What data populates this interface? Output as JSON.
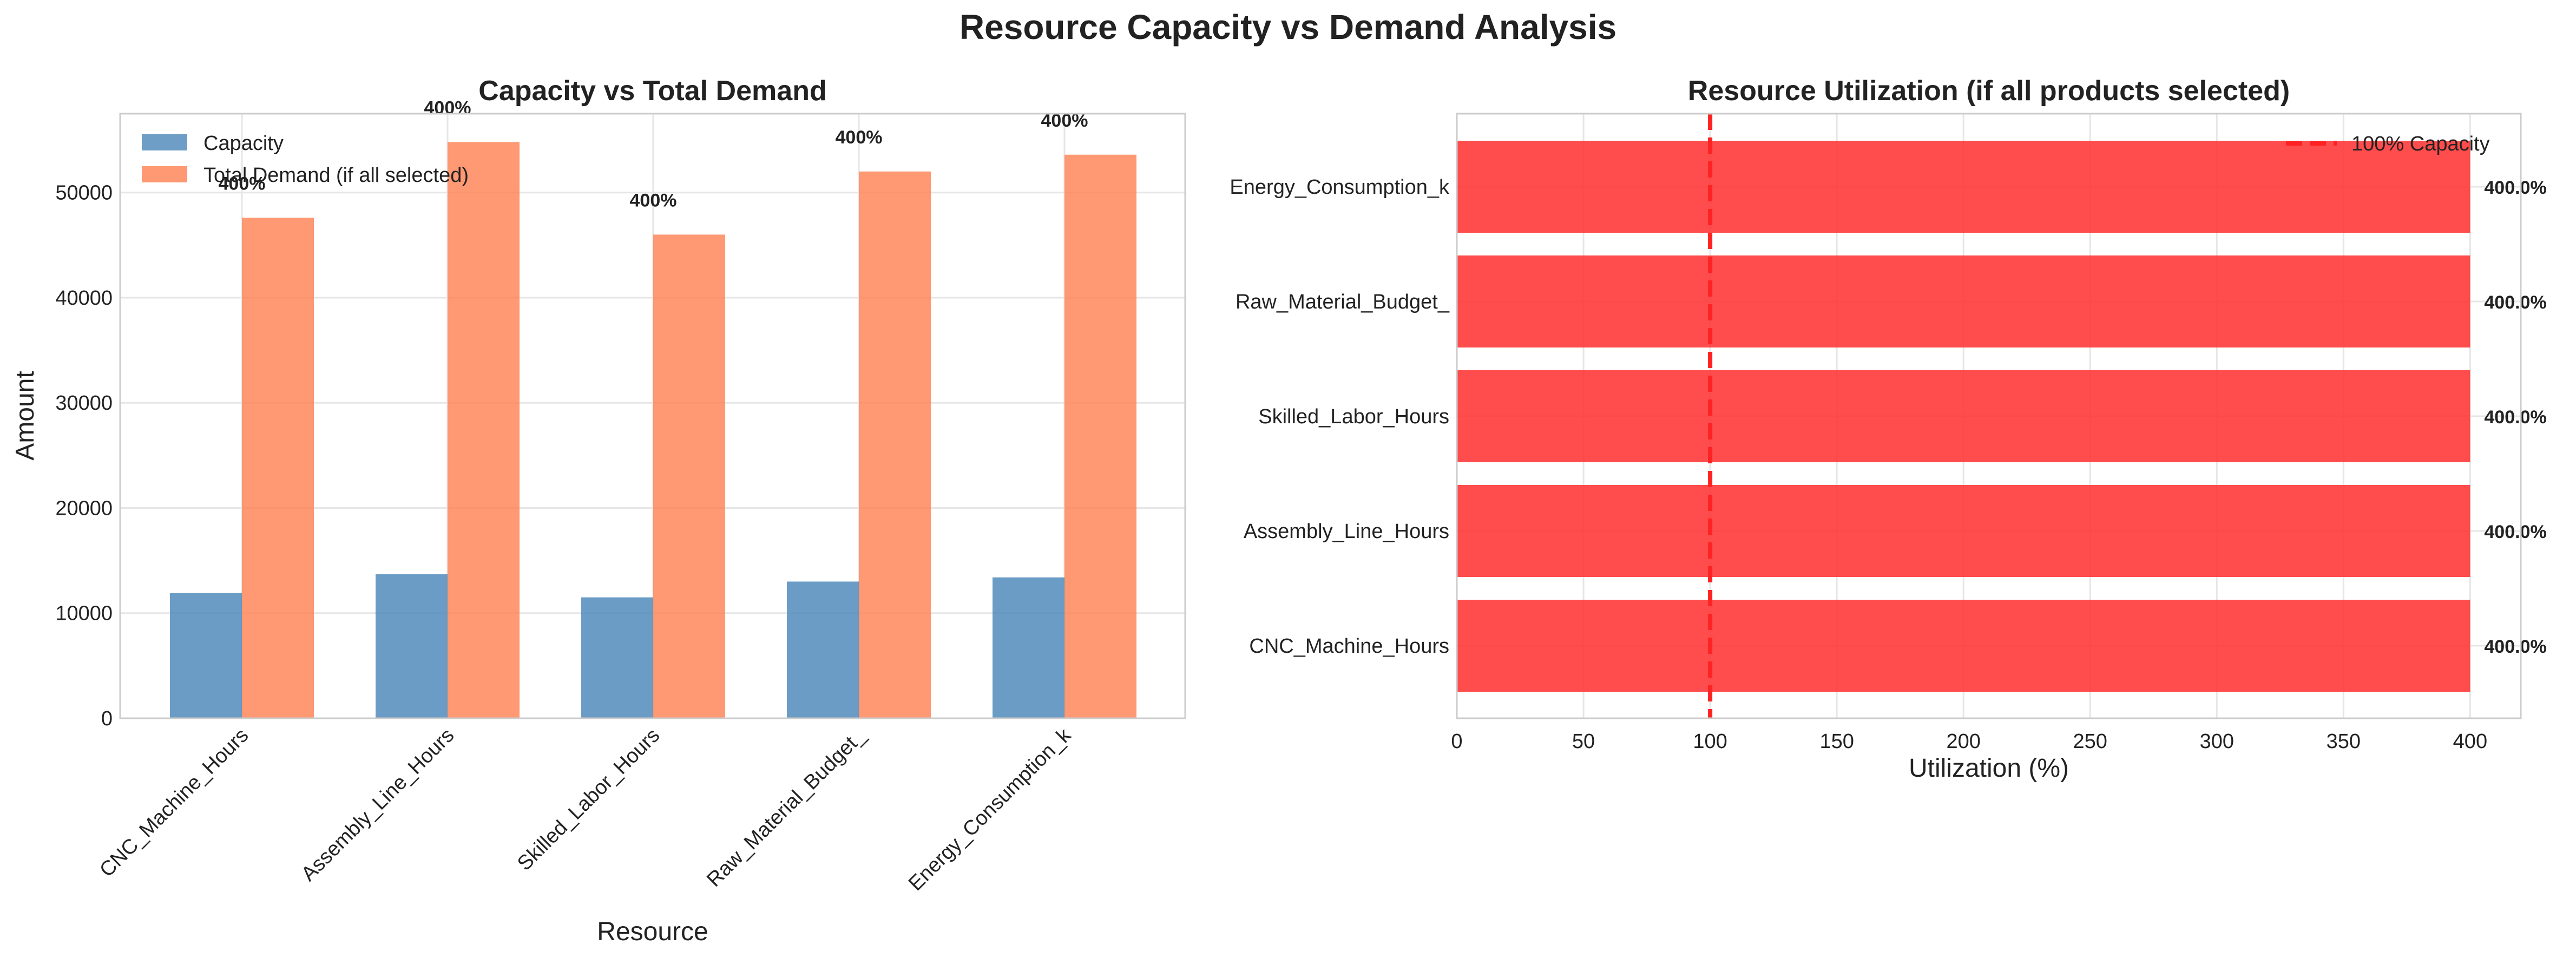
{
  "figure_title": "Resource Capacity vs Demand Analysis",
  "colors": {
    "capacity": "#4a86b8",
    "demand": "#ff7f50",
    "utilization_bar": "#ff3333",
    "reference_line": "#ff2222",
    "grid": "#e6e6e6",
    "spine": "#cccccc"
  },
  "chart_data": [
    {
      "type": "bar",
      "title": "Capacity vs Total Demand",
      "xlabel": "Resource",
      "ylabel": "Amount",
      "categories": [
        "CNC_Machine_Hours",
        "Assembly_Line_Hours",
        "Skilled_Labor_Hours",
        "Raw_Material_Budget_",
        "Energy_Consumption_k"
      ],
      "series": [
        {
          "name": "Capacity",
          "values": [
            11900,
            13700,
            11500,
            13000,
            13400
          ]
        },
        {
          "name": "Total Demand (if all selected)",
          "values": [
            47600,
            54800,
            46000,
            52000,
            53600
          ]
        }
      ],
      "bar_labels": [
        "400%",
        "400%",
        "400%",
        "400%",
        "400%"
      ],
      "ylim": [
        0,
        57500
      ],
      "yticks": [
        0,
        10000,
        20000,
        30000,
        40000,
        50000
      ],
      "ytick_labels": [
        "0",
        "10000",
        "20000",
        "30000",
        "40000",
        "50000"
      ],
      "grid": true,
      "legend_position": "upper-left"
    },
    {
      "type": "bar",
      "orientation": "horizontal",
      "title": "Resource Utilization (if all products selected)",
      "xlabel": "Utilization (%)",
      "ylabel": "",
      "categories": [
        "CNC_Machine_Hours",
        "Assembly_Line_Hours",
        "Skilled_Labor_Hours",
        "Raw_Material_Budget_",
        "Energy_Consumption_k"
      ],
      "values": [
        400,
        400,
        400,
        400,
        400
      ],
      "bar_labels": [
        "400.0%",
        "400.0%",
        "400.0%",
        "400.0%",
        "400.0%"
      ],
      "xlim": [
        0,
        420
      ],
      "xticks": [
        0,
        50,
        100,
        150,
        200,
        250,
        300,
        350,
        400
      ],
      "xtick_labels": [
        "0",
        "50",
        "100",
        "150",
        "200",
        "250",
        "300",
        "350",
        "400"
      ],
      "reference_line": {
        "value": 100,
        "name": "100% Capacity"
      },
      "grid": true,
      "legend_position": "upper-right"
    }
  ]
}
